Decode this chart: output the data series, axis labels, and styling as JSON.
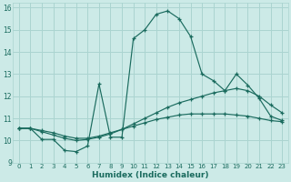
{
  "xlabel": "Humidex (Indice chaleur)",
  "ylabel": "",
  "background_color": "#cceae7",
  "grid_color": "#aad4d0",
  "line_color": "#1a6b5e",
  "xlim": [
    -0.5,
    23.5
  ],
  "ylim": [
    9,
    16.2
  ],
  "xticks": [
    0,
    1,
    2,
    3,
    4,
    5,
    6,
    7,
    8,
    9,
    10,
    11,
    12,
    13,
    14,
    15,
    16,
    17,
    18,
    19,
    20,
    21,
    22,
    23
  ],
  "yticks": [
    9,
    10,
    11,
    12,
    13,
    14,
    15,
    16
  ],
  "series": [
    {
      "x": [
        0,
        1,
        2,
        3,
        4,
        5,
        6,
        7,
        8,
        9,
        10,
        11,
        12,
        13,
        14,
        15,
        16,
        17,
        18,
        19,
        20,
        21,
        22,
        23
      ],
      "y": [
        10.55,
        10.55,
        10.05,
        10.05,
        9.55,
        9.5,
        9.75,
        12.55,
        10.15,
        10.15,
        14.6,
        15.0,
        15.7,
        15.85,
        15.5,
        14.7,
        13.0,
        12.7,
        12.25,
        13.0,
        12.5,
        11.9,
        11.1,
        10.9
      ]
    },
    {
      "x": [
        0,
        1,
        2,
        3,
        4,
        5,
        6,
        7,
        8,
        9,
        10,
        11,
        12,
        13,
        14,
        15,
        16,
        17,
        18,
        19,
        20,
        21,
        22,
        23
      ],
      "y": [
        10.55,
        10.55,
        10.4,
        10.25,
        10.1,
        10.0,
        10.05,
        10.15,
        10.3,
        10.5,
        10.75,
        11.0,
        11.25,
        11.5,
        11.7,
        11.85,
        12.0,
        12.15,
        12.25,
        12.35,
        12.25,
        12.0,
        11.6,
        11.25
      ]
    },
    {
      "x": [
        0,
        1,
        2,
        3,
        4,
        5,
        6,
        7,
        8,
        9,
        10,
        11,
        12,
        13,
        14,
        15,
        16,
        17,
        18,
        19,
        20,
        21,
        22,
        23
      ],
      "y": [
        10.55,
        10.55,
        10.45,
        10.35,
        10.2,
        10.1,
        10.1,
        10.2,
        10.35,
        10.5,
        10.65,
        10.8,
        10.95,
        11.05,
        11.15,
        11.2,
        11.2,
        11.2,
        11.2,
        11.15,
        11.1,
        11.0,
        10.9,
        10.85
      ]
    }
  ]
}
